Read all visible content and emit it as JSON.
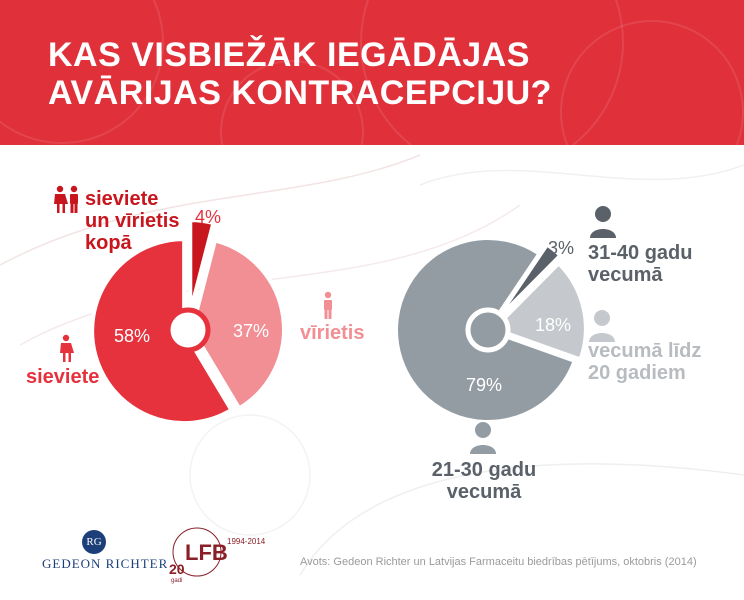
{
  "header": {
    "title_line1": "KAS VISBIEŽĀK IEGĀDĀJAS",
    "title_line2": "AVĀRIJAS KONTRACEPCIJU?"
  },
  "colors": {
    "header_bg": "#e0303a",
    "women": "#e5323d",
    "men": "#f28f94",
    "both": "#c8161e",
    "age_21_30": "#949ca3",
    "age_31_40": "#5a6169",
    "age_under_20": "#c5c9cd",
    "label_red": "#e5323d",
    "label_pink": "#f28f94",
    "label_dark": "#5a6169",
    "label_light": "#b8bcc0"
  },
  "chart_data": [
    {
      "type": "pie",
      "slices": [
        {
          "label": "sieviete un vīrietis kopā",
          "value": 4,
          "display": "4%"
        },
        {
          "label": "vīrietis",
          "value": 37,
          "display": "37%"
        },
        {
          "label": "sieviete",
          "value": 58,
          "display": "58%"
        }
      ]
    },
    {
      "type": "pie",
      "slices": [
        {
          "label": "31-40 gadu vecumā",
          "value": 3,
          "display": "3%"
        },
        {
          "label": "vecumā līdz 20 gadiem",
          "value": 18,
          "display": "18%"
        },
        {
          "label": "21-30 gadu vecumā",
          "value": 79,
          "display": "79%"
        }
      ]
    }
  ],
  "labels": {
    "both_line1": "sieviete",
    "both_line2": "un vīrietis",
    "both_line3": "kopā",
    "man": "vīrietis",
    "woman": "sieviete",
    "age_31_40_line1": "31-40 gadu",
    "age_31_40_line2": "vecumā",
    "age_under20_line1": "vecumā līdz",
    "age_under20_line2": "20 gadiem",
    "age_21_30_line1": "21-30 gadu",
    "age_21_30_line2": "vecumā"
  },
  "logos": {
    "gr_name": "GEDEON RICHTER",
    "gr_mark": "RG",
    "lfb_letters": "LFB",
    "lfb_years": "1994-2014",
    "lfb_anniversary": "20",
    "lfb_anniversary_unit": "gadi"
  },
  "footer": {
    "source": "Avots: Gedeon Richter un Latvijas Farmaceitu biedrības pētījums, oktobris (2014)"
  },
  "icons": {
    "couple": "couple-icon",
    "man": "man-icon",
    "woman": "woman-icon",
    "person": "person-bust-icon"
  }
}
